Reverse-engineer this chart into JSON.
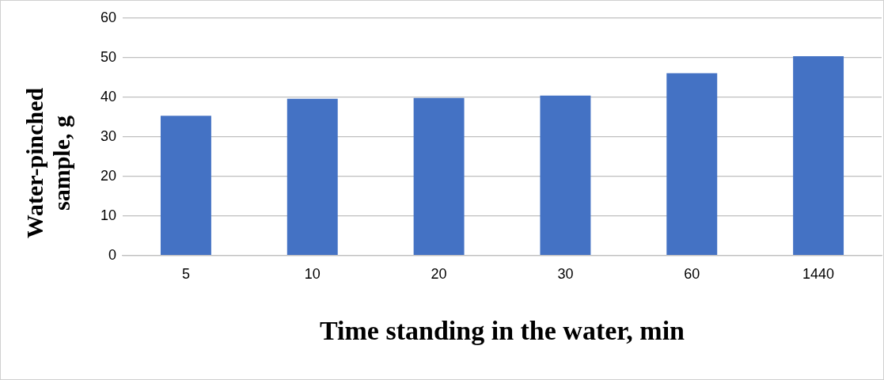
{
  "chart_data": {
    "type": "bar",
    "xlabel": "Time standing in the water, min",
    "ylabel": "Water-pinched sample, g",
    "categories": [
      "5",
      "10",
      "20",
      "30",
      "60",
      "1440"
    ],
    "values": [
      35.3,
      39.6,
      39.8,
      40.4,
      46.1,
      50.4
    ],
    "color": "#4472c4",
    "ylim": [
      0,
      60
    ],
    "yticks": [
      0,
      10,
      20,
      30,
      40,
      50,
      60
    ],
    "grid": "y",
    "legend": false
  }
}
